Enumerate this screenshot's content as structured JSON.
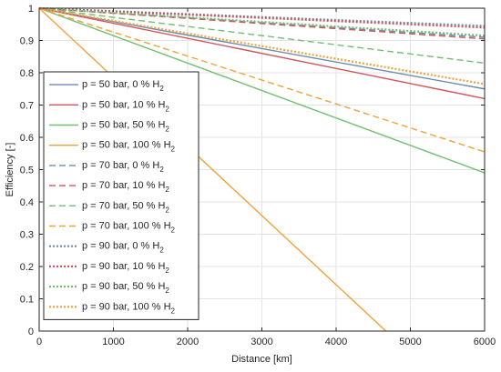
{
  "chart_data": {
    "type": "line",
    "title": "",
    "xlabel": "Distance [km]",
    "ylabel": "Efficiency [-]",
    "xlim": [
      0,
      6000
    ],
    "ylim": [
      0,
      1
    ],
    "xticks": [
      "0",
      "1000",
      "2000",
      "3000",
      "4000",
      "5000",
      "6000"
    ],
    "yticks": [
      "0",
      "0.1",
      "0.2",
      "0.3",
      "0.4",
      "0.5",
      "0.6",
      "0.7",
      "0.8",
      "0.9",
      "1"
    ],
    "grid": true,
    "legend_position": "top-left",
    "colors": {
      "blue": "#6a8caf",
      "red": "#d1555b",
      "green": "#72bd72",
      "orange": "#f0a23a",
      "axis": "#262626",
      "grid": "#e3e3e3"
    },
    "series": [
      {
        "name": "p = 50 bar, 0 % H2",
        "label_main": "p = 50 bar, 0 % H",
        "label_sub": "2",
        "color": "blue",
        "dash": "solid",
        "x": [
          0,
          6000
        ],
        "y": [
          1.0,
          0.75
        ]
      },
      {
        "name": "p = 50 bar, 10 % H2",
        "label_main": "p = 50 bar, 10 % H",
        "label_sub": "2",
        "color": "red",
        "dash": "solid",
        "x": [
          0,
          6000
        ],
        "y": [
          1.0,
          0.72
        ]
      },
      {
        "name": "p = 50 bar, 50 % H2",
        "label_main": "p = 50 bar, 50 % H",
        "label_sub": "2",
        "color": "green",
        "dash": "solid",
        "x": [
          0,
          6000
        ],
        "y": [
          1.0,
          0.49
        ]
      },
      {
        "name": "p = 50 bar, 100 % H2",
        "label_main": "p = 50 bar, 100 % H",
        "label_sub": "2",
        "color": "orange",
        "dash": "solid",
        "x": [
          0,
          4670
        ],
        "y": [
          1.0,
          0.0
        ]
      },
      {
        "name": "p = 70 bar, 0 % H2",
        "label_main": "p = 70 bar, 0 % H",
        "label_sub": "2",
        "color": "blue",
        "dash": "dashed",
        "x": [
          0,
          6000
        ],
        "y": [
          1.0,
          0.91
        ]
      },
      {
        "name": "p = 70 bar, 10 % H2",
        "label_main": "p = 70 bar, 10 % H",
        "label_sub": "2",
        "color": "red",
        "dash": "dashed",
        "x": [
          0,
          6000
        ],
        "y": [
          1.0,
          0.905
        ]
      },
      {
        "name": "p = 70 bar, 50 % H2",
        "label_main": "p = 70 bar, 50 % H",
        "label_sub": "2",
        "color": "green",
        "dash": "dashed",
        "x": [
          0,
          6000
        ],
        "y": [
          1.0,
          0.83
        ]
      },
      {
        "name": "p = 70 bar, 100 % H2",
        "label_main": "p = 70 bar, 100 % H",
        "label_sub": "2",
        "color": "orange",
        "dash": "dashed",
        "x": [
          0,
          6000
        ],
        "y": [
          1.0,
          0.555
        ]
      },
      {
        "name": "p = 90 bar, 0 % H2",
        "label_main": "p = 90 bar, 0 % H",
        "label_sub": "2",
        "color": "blue",
        "dash": "dotted",
        "x": [
          0,
          6000
        ],
        "y": [
          1.0,
          0.945
        ]
      },
      {
        "name": "p = 90 bar, 10 % H2",
        "label_main": "p = 90 bar, 10 % H",
        "label_sub": "2",
        "color": "red",
        "dash": "dotted",
        "x": [
          0,
          6000
        ],
        "y": [
          1.0,
          0.94
        ]
      },
      {
        "name": "p = 90 bar, 50 % H2",
        "label_main": "p = 90 bar, 50 % H",
        "label_sub": "2",
        "color": "green",
        "dash": "dotted",
        "x": [
          0,
          6000
        ],
        "y": [
          1.0,
          0.915
        ]
      },
      {
        "name": "p = 90 bar, 100 % H2",
        "label_main": "p = 90 bar, 100 % H",
        "label_sub": "2",
        "color": "orange",
        "dash": "dotted",
        "x": [
          0,
          6000
        ],
        "y": [
          1.0,
          0.765
        ]
      }
    ]
  }
}
